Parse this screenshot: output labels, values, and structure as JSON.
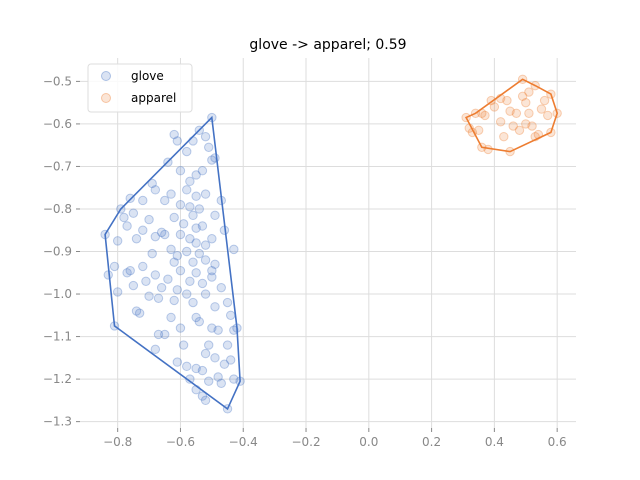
{
  "chart_data": {
    "type": "scatter",
    "title": "glove -> apparel; 0.59",
    "xlabel": "",
    "ylabel": "",
    "xlim": [
      -0.92,
      0.66
    ],
    "ylim": [
      -1.315,
      -0.445
    ],
    "x_ticks": [
      -0.8,
      -0.6,
      -0.4,
      -0.2,
      0.0,
      0.2,
      0.4,
      0.6
    ],
    "x_tick_labels": [
      "−0.8",
      "−0.6",
      "−0.4",
      "−0.2",
      "0.0",
      "0.2",
      "0.4",
      "0.6"
    ],
    "y_ticks": [
      -0.5,
      -0.6,
      -0.7,
      -0.8,
      -0.9,
      -1.0,
      -1.1,
      -1.2,
      -1.3
    ],
    "y_tick_labels": [
      "−0.5",
      "−0.6",
      "−0.7",
      "−0.8",
      "−0.9",
      "−1.0",
      "−1.1",
      "−1.2",
      "−1.3"
    ],
    "grid": true,
    "legend_position": "top-left",
    "series": [
      {
        "name": "glove",
        "color": "#4472c4",
        "hull": [
          [
            -0.84,
            -0.86
          ],
          [
            -0.81,
            -1.075
          ],
          [
            -0.45,
            -1.27
          ],
          [
            -0.41,
            -1.205
          ],
          [
            -0.42,
            -1.08
          ],
          [
            -0.5,
            -0.585
          ],
          [
            -0.79,
            -0.8
          ]
        ],
        "points": [
          [
            -0.84,
            -0.86
          ],
          [
            -0.83,
            -0.955
          ],
          [
            -0.81,
            -1.075
          ],
          [
            -0.45,
            -1.27
          ],
          [
            -0.41,
            -1.205
          ],
          [
            -0.42,
            -1.08
          ],
          [
            -0.5,
            -0.585
          ],
          [
            -0.79,
            -0.8
          ],
          [
            -0.62,
            -0.625
          ],
          [
            -0.54,
            -0.615
          ],
          [
            -0.52,
            -0.63
          ],
          [
            -0.56,
            -0.64
          ],
          [
            -0.51,
            -0.655
          ],
          [
            -0.49,
            -0.68
          ],
          [
            -0.5,
            -0.685
          ],
          [
            -0.58,
            -0.665
          ],
          [
            -0.64,
            -0.69
          ],
          [
            -0.6,
            -0.71
          ],
          [
            -0.55,
            -0.72
          ],
          [
            -0.53,
            -0.71
          ],
          [
            -0.57,
            -0.735
          ],
          [
            -0.69,
            -0.74
          ],
          [
            -0.68,
            -0.755
          ],
          [
            -0.63,
            -0.765
          ],
          [
            -0.58,
            -0.755
          ],
          [
            -0.55,
            -0.77
          ],
          [
            -0.52,
            -0.765
          ],
          [
            -0.47,
            -0.78
          ],
          [
            -0.76,
            -0.775
          ],
          [
            -0.72,
            -0.78
          ],
          [
            -0.65,
            -0.78
          ],
          [
            -0.6,
            -0.79
          ],
          [
            -0.57,
            -0.795
          ],
          [
            -0.75,
            -0.81
          ],
          [
            -0.78,
            -0.82
          ],
          [
            -0.7,
            -0.825
          ],
          [
            -0.62,
            -0.82
          ],
          [
            -0.56,
            -0.815
          ],
          [
            -0.54,
            -0.8
          ],
          [
            -0.49,
            -0.815
          ],
          [
            -0.77,
            -0.84
          ],
          [
            -0.59,
            -0.835
          ],
          [
            -0.53,
            -0.84
          ],
          [
            -0.72,
            -0.85
          ],
          [
            -0.66,
            -0.855
          ],
          [
            -0.6,
            -0.86
          ],
          [
            -0.57,
            -0.87
          ],
          [
            -0.5,
            -0.87
          ],
          [
            -0.8,
            -0.875
          ],
          [
            -0.74,
            -0.87
          ],
          [
            -0.68,
            -0.865
          ],
          [
            -0.65,
            -0.86
          ],
          [
            -0.55,
            -0.88
          ],
          [
            -0.52,
            -0.885
          ],
          [
            -0.63,
            -0.895
          ],
          [
            -0.61,
            -0.91
          ],
          [
            -0.58,
            -0.9
          ],
          [
            -0.54,
            -0.905
          ],
          [
            -0.69,
            -0.905
          ],
          [
            -0.43,
            -0.895
          ],
          [
            -0.62,
            -0.925
          ],
          [
            -0.56,
            -0.925
          ],
          [
            -0.52,
            -0.92
          ],
          [
            -0.49,
            -0.93
          ],
          [
            -0.72,
            -0.935
          ],
          [
            -0.76,
            -0.945
          ],
          [
            -0.6,
            -0.945
          ],
          [
            -0.55,
            -0.95
          ],
          [
            -0.68,
            -0.955
          ],
          [
            -0.64,
            -0.965
          ],
          [
            -0.5,
            -0.945
          ],
          [
            -0.81,
            -0.935
          ],
          [
            -0.77,
            -0.95
          ],
          [
            -0.71,
            -0.97
          ],
          [
            -0.57,
            -0.97
          ],
          [
            -0.53,
            -0.975
          ],
          [
            -0.47,
            -0.985
          ],
          [
            -0.75,
            -0.98
          ],
          [
            -0.66,
            -0.985
          ],
          [
            -0.61,
            -0.99
          ],
          [
            -0.58,
            -1.0
          ],
          [
            -0.52,
            -1.0
          ],
          [
            -0.8,
            -0.995
          ],
          [
            -0.7,
            -1.005
          ],
          [
            -0.67,
            -1.01
          ],
          [
            -0.62,
            -1.015
          ],
          [
            -0.56,
            -1.02
          ],
          [
            -0.45,
            -1.02
          ],
          [
            -0.49,
            -1.03
          ],
          [
            -0.74,
            -1.04
          ],
          [
            -0.73,
            -1.045
          ],
          [
            -0.55,
            -1.055
          ],
          [
            -0.54,
            -1.065
          ],
          [
            -0.63,
            -1.055
          ],
          [
            -0.44,
            -1.05
          ],
          [
            -0.67,
            -1.095
          ],
          [
            -0.6,
            -1.08
          ],
          [
            -0.5,
            -1.08
          ],
          [
            -0.48,
            -1.085
          ],
          [
            -0.43,
            -1.085
          ],
          [
            -0.68,
            -1.13
          ],
          [
            -0.59,
            -1.12
          ],
          [
            -0.51,
            -1.12
          ],
          [
            -0.45,
            -1.12
          ],
          [
            -0.52,
            -1.14
          ],
          [
            -0.49,
            -1.15
          ],
          [
            -0.61,
            -1.16
          ],
          [
            -0.58,
            -1.17
          ],
          [
            -0.55,
            -1.175
          ],
          [
            -0.46,
            -1.165
          ],
          [
            -0.53,
            -1.18
          ],
          [
            -0.44,
            -1.155
          ],
          [
            -0.57,
            -1.2
          ],
          [
            -0.51,
            -1.205
          ],
          [
            -0.47,
            -1.21
          ],
          [
            -0.43,
            -1.2
          ],
          [
            -0.55,
            -1.225
          ],
          [
            -0.53,
            -1.24
          ],
          [
            -0.52,
            -1.25
          ],
          [
            -0.48,
            -1.195
          ],
          [
            -0.65,
            -1.095
          ],
          [
            -0.61,
            -0.64
          ],
          [
            -0.55,
            -0.845
          ],
          [
            -0.46,
            -0.85
          ],
          [
            -0.5,
            -0.96
          ]
        ]
      },
      {
        "name": "apparel",
        "color": "#ed7d31",
        "hull": [
          [
            0.31,
            -0.585
          ],
          [
            0.36,
            -0.655
          ],
          [
            0.45,
            -0.665
          ],
          [
            0.58,
            -0.62
          ],
          [
            0.6,
            -0.575
          ],
          [
            0.58,
            -0.53
          ],
          [
            0.53,
            -0.51
          ],
          [
            0.49,
            -0.495
          ],
          [
            0.34,
            -0.575
          ]
        ],
        "points": [
          [
            0.31,
            -0.585
          ],
          [
            0.36,
            -0.655
          ],
          [
            0.45,
            -0.665
          ],
          [
            0.58,
            -0.62
          ],
          [
            0.6,
            -0.575
          ],
          [
            0.58,
            -0.53
          ],
          [
            0.53,
            -0.51
          ],
          [
            0.49,
            -0.495
          ],
          [
            0.34,
            -0.575
          ],
          [
            0.33,
            -0.62
          ],
          [
            0.32,
            -0.61
          ],
          [
            0.37,
            -0.58
          ],
          [
            0.39,
            -0.545
          ],
          [
            0.4,
            -0.56
          ],
          [
            0.42,
            -0.54
          ],
          [
            0.44,
            -0.545
          ],
          [
            0.45,
            -0.57
          ],
          [
            0.47,
            -0.575
          ],
          [
            0.49,
            -0.535
          ],
          [
            0.5,
            -0.55
          ],
          [
            0.51,
            -0.525
          ],
          [
            0.46,
            -0.605
          ],
          [
            0.48,
            -0.615
          ],
          [
            0.5,
            -0.6
          ],
          [
            0.52,
            -0.605
          ],
          [
            0.54,
            -0.625
          ],
          [
            0.55,
            -0.565
          ],
          [
            0.57,
            -0.58
          ],
          [
            0.43,
            -0.63
          ],
          [
            0.38,
            -0.66
          ],
          [
            0.35,
            -0.615
          ],
          [
            0.36,
            -0.575
          ],
          [
            0.42,
            -0.595
          ],
          [
            0.53,
            -0.63
          ],
          [
            0.56,
            -0.545
          ],
          [
            0.51,
            -0.575
          ]
        ]
      }
    ]
  }
}
